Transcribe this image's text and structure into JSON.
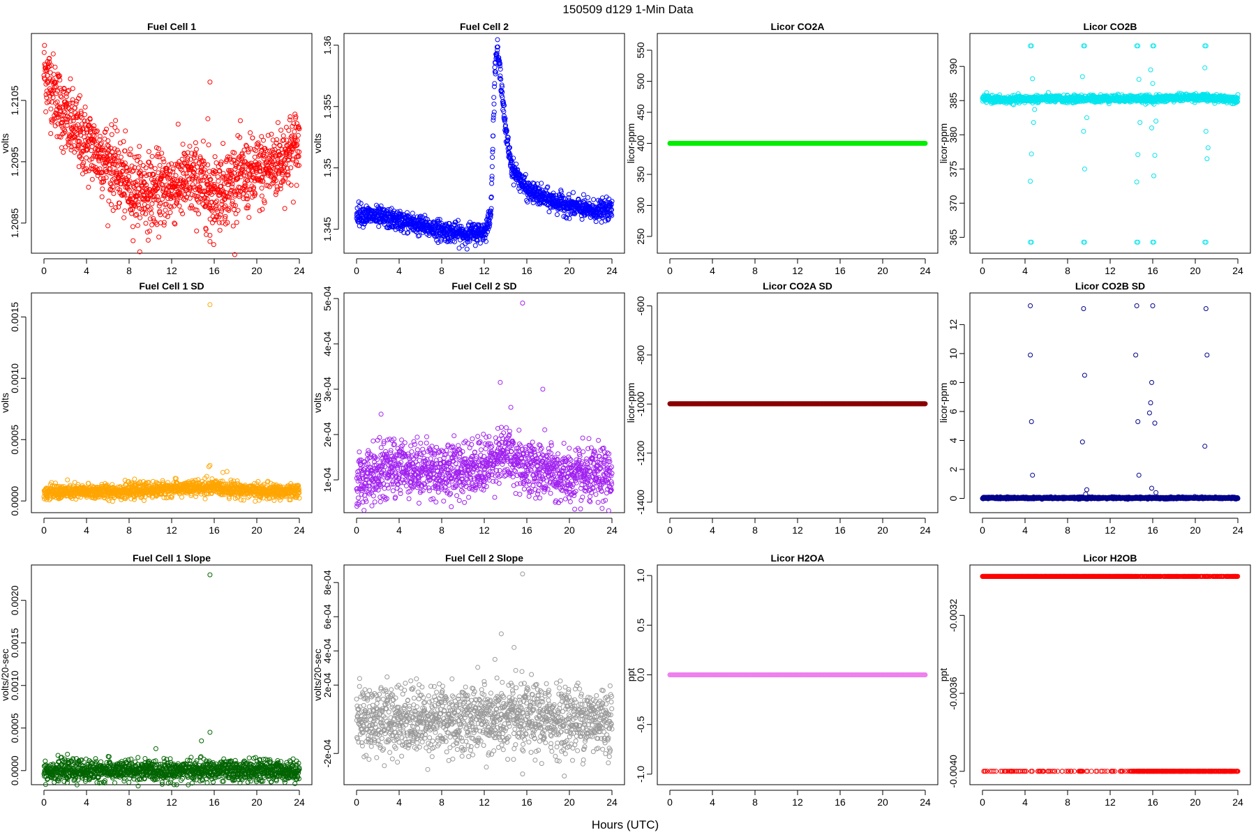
{
  "title": "150509   d129   1-Min Data",
  "xlabel": "Hours (UTC)",
  "chart_data": [
    {
      "type": "scatter",
      "title": "Fuel Cell 1",
      "ylabel": "volts",
      "color": "#ff0000",
      "xlim": [
        0,
        24
      ],
      "ylim": [
        1.2081,
        1.2115
      ],
      "xticks": [
        0,
        4,
        8,
        12,
        16,
        20,
        24
      ],
      "yticks": [
        1.2085,
        1.2095,
        1.2105
      ],
      "n": 1400,
      "trend": [
        [
          0,
          1.211
        ],
        [
          2,
          1.2102
        ],
        [
          4,
          1.2098
        ],
        [
          6,
          1.2095
        ],
        [
          8,
          1.2091
        ],
        [
          10,
          1.209
        ],
        [
          12,
          1.2091
        ],
        [
          14,
          1.2092
        ],
        [
          16,
          1.209
        ],
        [
          18,
          1.2092
        ],
        [
          20,
          1.2093
        ],
        [
          22,
          1.2095
        ],
        [
          24,
          1.2098
        ]
      ],
      "spread": 0.0003,
      "outliers": [
        [
          15.6,
          1.2108
        ],
        [
          15.6,
          1.2083
        ],
        [
          15.6,
          1.2082
        ],
        [
          15.4,
          1.2102
        ]
      ]
    },
    {
      "type": "scatter",
      "title": "Fuel Cell 2",
      "ylabel": "volts",
      "color": "#0000ff",
      "xlim": [
        0,
        24
      ],
      "ylim": [
        1.3435,
        1.3605
      ],
      "xticks": [
        0,
        4,
        8,
        12,
        16,
        20,
        24
      ],
      "yticks": [
        1.345,
        1.35,
        1.355,
        1.36
      ],
      "n": 1400,
      "trend": [
        [
          0,
          1.3463
        ],
        [
          4,
          1.3457
        ],
        [
          8,
          1.3449
        ],
        [
          10,
          1.3446
        ],
        [
          12,
          1.3448
        ],
        [
          12.6,
          1.346
        ],
        [
          13.0,
          1.358
        ],
        [
          13.2,
          1.3597
        ],
        [
          13.6,
          1.357
        ],
        [
          14.0,
          1.353
        ],
        [
          14.6,
          1.35
        ],
        [
          15.4,
          1.349
        ],
        [
          16,
          1.3482
        ],
        [
          18,
          1.3474
        ],
        [
          20,
          1.3469
        ],
        [
          22,
          1.3465
        ],
        [
          24,
          1.3466
        ]
      ],
      "spread": 0.0004,
      "outliers": []
    },
    {
      "type": "scatter",
      "title": "Licor CO2A",
      "ylabel": "licor-ppm",
      "color": "#00ee00",
      "xlim": [
        0,
        24
      ],
      "ylim": [
        232,
        568
      ],
      "xticks": [
        0,
        4,
        8,
        12,
        16,
        20,
        24
      ],
      "yticks": [
        250,
        300,
        350,
        400,
        450,
        500,
        550
      ],
      "n": 1400,
      "trend": [
        [
          0,
          400
        ],
        [
          24,
          400
        ]
      ],
      "spread": 0,
      "outliers": []
    },
    {
      "type": "scatter",
      "title": "Licor CO2B",
      "ylabel": "licor-ppm",
      "color": "#00e5ee",
      "xlim": [
        0,
        24
      ],
      "ylim": [
        363.5,
        394
      ],
      "xticks": [
        0,
        4,
        8,
        12,
        16,
        20,
        24
      ],
      "yticks": [
        365,
        370,
        375,
        380,
        385,
        390
      ],
      "n": 1400,
      "trend": [
        [
          0,
          385.3
        ],
        [
          2,
          385.1
        ],
        [
          4,
          385.2
        ],
        [
          6,
          385.3
        ],
        [
          8,
          385.2
        ],
        [
          10,
          385.3
        ],
        [
          12,
          385.3
        ],
        [
          14,
          385.3
        ],
        [
          16,
          385.2
        ],
        [
          18,
          385.4
        ],
        [
          20,
          385.5
        ],
        [
          22,
          385.3
        ],
        [
          24,
          385.2
        ]
      ],
      "spread": 0.25,
      "outliers": [
        [
          4.5,
          393
        ],
        [
          4.6,
          393
        ],
        [
          9.5,
          393
        ],
        [
          9.6,
          393
        ],
        [
          14.5,
          393
        ],
        [
          14.6,
          393
        ],
        [
          16.0,
          393
        ],
        [
          16.1,
          393
        ],
        [
          20.9,
          393
        ],
        [
          21.0,
          393
        ],
        [
          4.5,
          364.3
        ],
        [
          4.6,
          364.3
        ],
        [
          9.5,
          364.3
        ],
        [
          9.6,
          364.3
        ],
        [
          14.5,
          364.3
        ],
        [
          14.6,
          364.3
        ],
        [
          16.0,
          364.3
        ],
        [
          16.1,
          364.3
        ],
        [
          20.9,
          364.3
        ],
        [
          21.0,
          364.3
        ],
        [
          4.7,
          388.2
        ],
        [
          4.5,
          373.2
        ],
        [
          4.6,
          377.2
        ],
        [
          4.8,
          381.8
        ],
        [
          4.9,
          383.7
        ],
        [
          9.4,
          388.5
        ],
        [
          9.5,
          380.5
        ],
        [
          9.6,
          375.0
        ],
        [
          9.8,
          382.5
        ],
        [
          14.5,
          373.1
        ],
        [
          14.6,
          377.1
        ],
        [
          14.7,
          388.1
        ],
        [
          14.8,
          381.8
        ],
        [
          15.8,
          389.5
        ],
        [
          15.9,
          381.0
        ],
        [
          16.0,
          387.5
        ],
        [
          16.1,
          374.0
        ],
        [
          16.2,
          377.0
        ],
        [
          16.3,
          382.0
        ],
        [
          20.9,
          389.8
        ],
        [
          21.0,
          380.5
        ],
        [
          21.1,
          376.5
        ],
        [
          21.2,
          378.1
        ]
      ]
    },
    {
      "type": "scatter",
      "title": "Fuel Cell 1 SD",
      "ylabel": "volts",
      "color": "#ffa500",
      "xlim": [
        0,
        24
      ],
      "ylim": [
        -5e-05,
        0.00165
      ],
      "xticks": [
        0,
        4,
        8,
        12,
        16,
        20,
        24
      ],
      "yticks": [
        0,
        0.0005,
        0.001,
        0.0015
      ],
      "yticklabels": [
        "0.0000",
        "0.0005",
        "0.0010",
        "0.0015"
      ],
      "n": 1400,
      "trend": [
        [
          0,
          7e-05
        ],
        [
          8,
          8e-05
        ],
        [
          12,
          0.0001
        ],
        [
          16,
          0.00011
        ],
        [
          20,
          8e-05
        ],
        [
          24,
          7e-05
        ]
      ],
      "spread": 3e-05,
      "outliers": [
        [
          15.6,
          0.0016
        ],
        [
          15.6,
          0.00029
        ],
        [
          15.5,
          0.00028
        ],
        [
          17.2,
          0.00024
        ],
        [
          15.3,
          0.0002
        ]
      ]
    },
    {
      "type": "scatter",
      "title": "Fuel Cell 2 SD",
      "ylabel": "volts",
      "color": "#a020f0",
      "xlim": [
        0,
        24
      ],
      "ylim": [
        4e-05,
        0.0005
      ],
      "xticks": [
        0,
        4,
        8,
        12,
        16,
        20,
        24
      ],
      "yticks": [
        0.0001,
        0.0002,
        0.0003,
        0.0004,
        0.0005
      ],
      "yticklabels": [
        "1e-04",
        "2e-04",
        "3e-04",
        "4e-04",
        "5e-04"
      ],
      "n": 1400,
      "trend": [
        [
          0,
          0.0001
        ],
        [
          4,
          0.00013
        ],
        [
          8,
          0.00012
        ],
        [
          12,
          0.00013
        ],
        [
          13.5,
          0.00016
        ],
        [
          16,
          0.00013
        ],
        [
          20,
          0.000105
        ],
        [
          24,
          0.00011
        ]
      ],
      "spread": 3e-05,
      "outliers": [
        [
          15.6,
          0.00049
        ],
        [
          13.5,
          0.000315
        ],
        [
          17.5,
          0.0003
        ],
        [
          2.3,
          0.000245
        ],
        [
          14.5,
          0.00026
        ]
      ]
    },
    {
      "type": "scatter",
      "title": "Licor CO2A SD",
      "ylabel": "licor-ppm",
      "color": "#8b0000",
      "xlim": [
        0,
        24
      ],
      "ylim": [
        -1420,
        -570
      ],
      "xticks": [
        0,
        4,
        8,
        12,
        16,
        20,
        24
      ],
      "yticks": [
        -1400,
        -1200,
        -1000,
        -800,
        -600
      ],
      "n": 1400,
      "trend": [
        [
          0,
          -999
        ],
        [
          24,
          -999
        ]
      ],
      "spread": 0,
      "outliers": []
    },
    {
      "type": "scatter",
      "title": "Licor CO2B SD",
      "ylabel": "licor-ppm",
      "color": "#00008b",
      "xlim": [
        0,
        24
      ],
      "ylim": [
        -0.6,
        13.8
      ],
      "xticks": [
        0,
        4,
        8,
        12,
        16,
        20,
        24
      ],
      "yticks": [
        0,
        2,
        4,
        6,
        8,
        10,
        12
      ],
      "n": 1400,
      "trend": [
        [
          0,
          0.03
        ],
        [
          24,
          0.03
        ]
      ],
      "spread": 0.03,
      "outliers": [
        [
          4.5,
          13.3
        ],
        [
          4.5,
          9.9
        ],
        [
          4.6,
          5.3
        ],
        [
          4.7,
          1.6
        ],
        [
          9.5,
          13.1
        ],
        [
          9.6,
          8.5
        ],
        [
          9.4,
          3.9
        ],
        [
          9.8,
          0.6
        ],
        [
          9.7,
          0.3
        ],
        [
          14.5,
          13.3
        ],
        [
          14.4,
          9.9
        ],
        [
          14.6,
          5.3
        ],
        [
          14.7,
          1.6
        ],
        [
          16.0,
          13.3
        ],
        [
          15.9,
          8.0
        ],
        [
          15.8,
          6.6
        ],
        [
          15.7,
          5.9
        ],
        [
          16.2,
          5.2
        ],
        [
          15.9,
          0.7
        ],
        [
          16.3,
          0.4
        ],
        [
          21.0,
          13.1
        ],
        [
          21.1,
          9.9
        ],
        [
          20.9,
          3.6
        ]
      ]
    },
    {
      "type": "scatter",
      "title": "Fuel Cell 1 Slope",
      "ylabel": "volts/20-sec",
      "color": "#006400",
      "xlim": [
        0,
        24
      ],
      "ylim": [
        -0.0001,
        0.00235
      ],
      "xticks": [
        0,
        4,
        8,
        12,
        16,
        20,
        24
      ],
      "yticks": [
        0,
        0.0005,
        0.001,
        0.0015,
        0.002
      ],
      "yticklabels": [
        "0.0000",
        "0.0005",
        "0.0010",
        "0.0015",
        "0.0020"
      ],
      "n": 1400,
      "trend": [
        [
          0,
          0.0
        ],
        [
          24,
          0.0
        ]
      ],
      "spread": 6e-05,
      "outliers": [
        [
          15.6,
          0.0023
        ],
        [
          15.6,
          0.00045
        ],
        [
          14.8,
          0.00035
        ]
      ]
    },
    {
      "type": "scatter",
      "title": "Fuel Cell 2 Slope",
      "ylabel": "volts/20-sec",
      "color": "#999999",
      "xlim": [
        0,
        24
      ],
      "ylim": [
        -0.00035,
        0.00087
      ],
      "xticks": [
        0,
        4,
        8,
        12,
        16,
        20,
        24
      ],
      "yticks": [
        -0.0002,
        0.0002,
        0.0004,
        0.0006,
        0.0008
      ],
      "yticklabels": [
        "-2e-04",
        "2e-04",
        "4e-04",
        "6e-04",
        "8e-04"
      ],
      "n": 1400,
      "trend": [
        [
          0,
          0.0
        ],
        [
          24,
          0.0
        ]
      ],
      "spread": 0.0001,
      "outliers": [
        [
          15.6,
          0.00085
        ],
        [
          13.6,
          0.0005
        ],
        [
          14.8,
          0.00042
        ],
        [
          13.0,
          0.00035
        ],
        [
          15.6,
          -0.00032
        ],
        [
          12.2,
          -0.00028
        ]
      ]
    },
    {
      "type": "scatter",
      "title": "Licor H2OA",
      "ylabel": "ppt",
      "color": "#ee82ee",
      "xlim": [
        0,
        24
      ],
      "ylim": [
        -1.05,
        1.05
      ],
      "xticks": [
        0,
        4,
        8,
        12,
        16,
        20,
        24
      ],
      "yticks": [
        -1.0,
        -0.5,
        0.0,
        0.5,
        1.0
      ],
      "yticklabels": [
        "-1.0",
        "-0.5",
        "0.0",
        "0.5",
        "1.0"
      ],
      "n": 1400,
      "trend": [
        [
          0,
          0.0
        ],
        [
          24,
          0.0
        ]
      ],
      "spread": 0,
      "outliers": []
    },
    {
      "type": "scatter",
      "title": "Licor H2OB",
      "ylabel": "ppt",
      "color": "#ff0000",
      "xlim": [
        0,
        24
      ],
      "ylim": [
        -0.00404,
        -0.00297
      ],
      "xticks": [
        0,
        4,
        8,
        12,
        16,
        20,
        24
      ],
      "yticks": [
        -0.004,
        -0.0036,
        -0.0032
      ],
      "yticklabels": [
        "-0.0040",
        "-0.0036",
        "-0.0032"
      ],
      "n": 1400,
      "levels": [
        -0.003,
        -0.004
      ],
      "trend": [
        [
          0,
          -0.003
        ],
        [
          24,
          -0.003
        ]
      ],
      "spread": 0,
      "outliers": []
    }
  ]
}
